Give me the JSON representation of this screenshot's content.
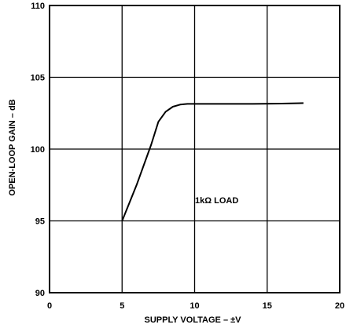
{
  "chart_data": {
    "type": "line",
    "title": "",
    "xlabel": "SUPPLY VOLTAGE – ±V",
    "ylabel": "OPEN-LOOP GAIN – dB",
    "xlim": [
      0,
      20
    ],
    "ylim": [
      90,
      110
    ],
    "x_ticks": [
      "0",
      "5",
      "10",
      "15",
      "20"
    ],
    "y_ticks": [
      "90",
      "95",
      "100",
      "105",
      "110"
    ],
    "grid": true,
    "annotation": "1kΩ LOAD",
    "series": [
      {
        "x": [
          5.0,
          6.0,
          7.0,
          7.5,
          8.0,
          8.5,
          9.0,
          9.5,
          10.0,
          12.0,
          14.0,
          16.0,
          17.5
        ],
        "y": [
          95.0,
          97.5,
          100.3,
          101.9,
          102.6,
          102.95,
          103.1,
          103.15,
          103.15,
          103.15,
          103.15,
          103.17,
          103.2
        ]
      }
    ]
  }
}
